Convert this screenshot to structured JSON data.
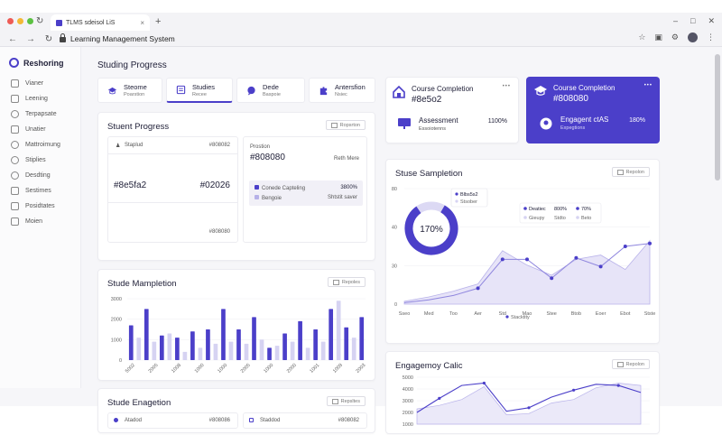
{
  "browser": {
    "tab_title": "TLMS sdeisol LiS",
    "tab_close": "×",
    "new_tab": "+",
    "url": "Learning Management System",
    "win_min": "–",
    "win_max": "□",
    "win_close": "✕"
  },
  "sidebar": {
    "brand": "Reshoring",
    "items": [
      {
        "label": "Vianer",
        "icon": "calendar-icon"
      },
      {
        "label": "Leening",
        "icon": "book-icon"
      },
      {
        "label": "Terpapsate",
        "icon": "clock-icon"
      },
      {
        "label": "Unatier",
        "icon": "folder-icon"
      },
      {
        "label": "Mattroimung",
        "icon": "gauge-icon"
      },
      {
        "label": "Stiplies",
        "icon": "tag-icon"
      },
      {
        "label": "Desdting",
        "icon": "chat-icon"
      },
      {
        "label": "Sestimes",
        "icon": "settings-icon"
      },
      {
        "label": "Posidtates",
        "icon": "list-icon"
      },
      {
        "label": "Moien",
        "icon": "info-icon"
      }
    ]
  },
  "page_title": "Studing Progress",
  "quick_tabs": [
    {
      "title": "Steome",
      "sub": "Poarstion"
    },
    {
      "title": "Studies",
      "sub": "Recee"
    },
    {
      "title": "Dede",
      "sub": "Baspoie"
    },
    {
      "title": "Antersfion",
      "sub": "Nsiec"
    }
  ],
  "student_progress": {
    "title": "Stuent Progress",
    "report": "Ropsrton",
    "left_row1_label": "Staplud",
    "left_row1_value": "#808082",
    "left_main_a": "#8e5fa2",
    "left_main_b": "#02026",
    "left_row3_value": "#808080",
    "right_label": "Prostion",
    "right_big": "#808080",
    "right_side": "Reth Mere",
    "legend1_label": "Conede Capteling",
    "legend1_value": "3800%",
    "legend2_label": "Bengoie",
    "legend2_value": "Shtstit saver"
  },
  "stude_mampletion": {
    "title": "Stude Mampletion",
    "report": "Repoles",
    "y_ticks": [
      "3000",
      "2000",
      "1000",
      "0"
    ]
  },
  "stude_engagetion": {
    "title": "Stude Enagetion",
    "report": "Repsltes",
    "row_left_label": "Atadod",
    "row_left_value": "#808086",
    "row_right_label": "Staddod",
    "row_right_value": "#808082"
  },
  "course_completion_card": {
    "title": "Course Completion",
    "value": "#8e5o2",
    "menu": "•••",
    "sub_title": "Assessment",
    "sub_caption": "Essoiotenns",
    "sub_value": "1100%"
  },
  "course_completion_card_active": {
    "title": "Course Completion",
    "value": "#808080",
    "menu": "•••",
    "sub_title": "Engagent ctAS",
    "sub_caption": "Expegtions",
    "sub_value": "180%"
  },
  "stuse_sampletion": {
    "title": "Stuse Sampletion",
    "report": "Repolon",
    "donut_label": "170%",
    "popup_title": "Blbs5s2",
    "popup_sub": "Stsober",
    "legend_a": "Deatiec",
    "legend_a_val": "800%",
    "legend_a_val2": "70%",
    "legend_b": "Gieupy",
    "legend_b_val": "Stdto",
    "legend_b_val2": "Beto",
    "series_label": "Stacktity",
    "y_ticks": [
      "80",
      "40",
      "30",
      "0"
    ]
  },
  "engagemoy_calic": {
    "title": "Engagemoy Calic",
    "report": "Repolon",
    "y_ticks": [
      "5000",
      "4000",
      "3000",
      "2000",
      "1000"
    ]
  },
  "colors": {
    "accent": "#4b3fc9",
    "accent_light": "#d6d3f2",
    "accent_mid": "#8f86de"
  },
  "chart_data": [
    {
      "type": "bar",
      "title": "Stude Mampletion",
      "categories": [
        "5002",
        "5601",
        "5001",
        "2005",
        "2000",
        "1001",
        "1008",
        "5001",
        "2000",
        "1000",
        "2005",
        "1008",
        "1000",
        "1005",
        "2005",
        "2005",
        "2000",
        "2000",
        "1000",
        "1000",
        "2000",
        "2000",
        "1005",
        "1000",
        "1001",
        "1008",
        "3000",
        "1009",
        "2050",
        "1000",
        "2003"
      ],
      "x_tick_labels": [
        "5002",
        "5601",
        "5001",
        "2005",
        "2000",
        "1001",
        "1008",
        "5001",
        "2000",
        "1000",
        "2005",
        "1008",
        "1000",
        "1005",
        "2005",
        "2005",
        "2000",
        "2000",
        "1000",
        "1000",
        "2000",
        "2000",
        "1005",
        "1000",
        "1001",
        "1008",
        "3000",
        "1009",
        "2050",
        "1000",
        "2003"
      ],
      "series": [
        {
          "values": [
            1700,
            1000,
            2500,
            1700,
            1200,
            1600,
            1100,
            2100,
            1400,
            2500,
            1500,
            1100,
            2500,
            1600,
            1500,
            1300,
            2100,
            1500,
            600,
            800,
            1300,
            1100,
            1900,
            1200,
            1500,
            1100,
            2500,
            1400,
            1600,
            1600,
            2100
          ]
        },
        {
          "values": [
            600,
            1100,
            700,
            900,
            500,
            1300,
            900,
            400,
            1000,
            600,
            1100,
            800,
            2900,
            900,
            600,
            800,
            600,
            1000,
            500,
            700,
            1100,
            900,
            700,
            600,
            1600,
            900,
            1000,
            2900,
            800,
            1100,
            2100
          ]
        }
      ],
      "ylim": [
        0,
        3000
      ]
    },
    {
      "type": "area",
      "title": "Stuse Sampletion",
      "categories": [
        "Sseo",
        "Med",
        "Too",
        "Aer",
        "Std",
        "Mao",
        "Stee",
        "Btob",
        "Eoer",
        "Ebot",
        "Stste"
      ],
      "series": [
        {
          "values": [
            2,
            5,
            9,
            14,
            37,
            27,
            20,
            31,
            34,
            24,
            44
          ]
        },
        {
          "values": [
            1,
            3,
            6,
            11,
            31,
            31,
            18,
            32,
            26,
            40,
            42
          ]
        }
      ],
      "ylim": [
        0,
        80
      ]
    },
    {
      "type": "line",
      "title": "Engagemoy Calic",
      "series": [
        {
          "values": [
            2000,
            3200,
            4300,
            4500,
            2100,
            2400,
            3300,
            3900,
            4400,
            4300,
            3700
          ]
        },
        {
          "values": [
            2300,
            2600,
            3100,
            4200,
            1800,
            1900,
            2800,
            3100,
            4100,
            4500,
            4300
          ]
        }
      ],
      "ylim": [
        1000,
        5000
      ]
    }
  ]
}
